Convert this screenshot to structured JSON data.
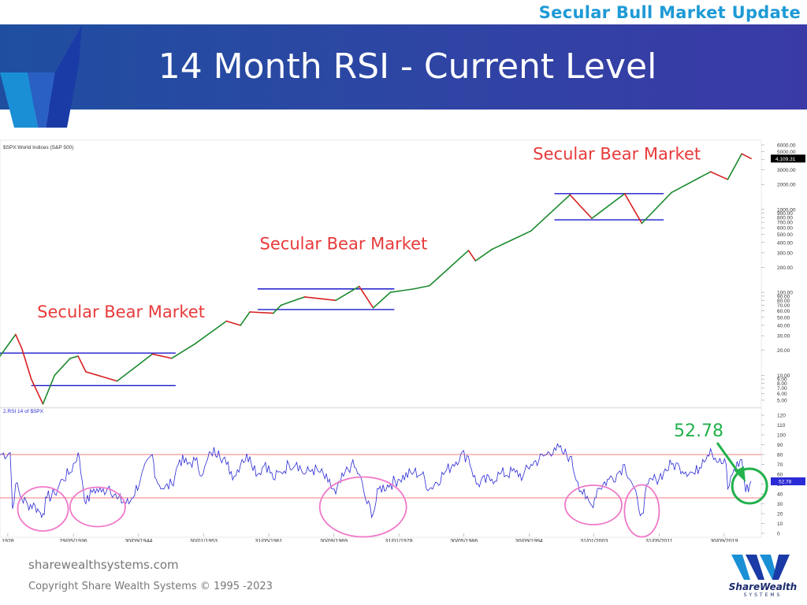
{
  "header": {
    "section_title": "Secular Bull Market Update",
    "slide_title": "14 Month RSI - Current Level"
  },
  "colors": {
    "banner": "#2c47a3",
    "section_title": "#1e9ad6",
    "annotation_red": "#e83a3a",
    "rsi_line": "#2a2ad6",
    "price_up": "#1b8a2e",
    "price_down": "#d82020",
    "support_resistance": "#1a1acc",
    "rsi_band": "#f08080",
    "circle_pink": "#f078c8",
    "circle_green": "#22b14c"
  },
  "chart_data": [
    {
      "type": "line",
      "panel_label": "$SPX:World Indices (S&P 500)",
      "y_scale": "log",
      "yticks": [
        "6000.00",
        "5000.00",
        "4000.00",
        "3000.00",
        "2000.00",
        "1000.00",
        "900.00",
        "800.00",
        "700.00",
        "600.00",
        "500.00",
        "400.00",
        "300.00",
        "200.00",
        "100.00",
        "90.00",
        "80.00",
        "70.00",
        "60.00",
        "50.00",
        "40.00",
        "30.00",
        "20.00",
        "10.00",
        "9.00",
        "8.00",
        "7.00",
        "6.00",
        "5.00"
      ],
      "last_value_label": "4,109.31",
      "series": [
        {
          "x": [
            1927,
            1929,
            1929.8,
            1931,
            1932.5,
            1934,
            1936,
            1937,
            1938,
            1942,
            1945,
            1946.5,
            1949,
            1952,
            1956,
            1957.8,
            1959,
            1962,
            1963,
            1966,
            1970,
            1973,
            1974.8,
            1977,
            1980,
            1982,
            1987,
            1987.9,
            1990,
            1995,
            2000,
            2002.8,
            2007,
            2009.2,
            2013,
            2018,
            2020.2,
            2022,
            2023.2
          ],
          "y": [
            17,
            31,
            21,
            9,
            4.5,
            10,
            16,
            17,
            11,
            8.5,
            14,
            18,
            16,
            24,
            45,
            40,
            58,
            56,
            70,
            88,
            80,
            118,
            65,
            100,
            110,
            120,
            320,
            240,
            330,
            550,
            1500,
            780,
            1550,
            680,
            1600,
            2850,
            2300,
            4700,
            4109
          ]
        }
      ],
      "channels": [
        {
          "x": [
            1927,
            1949.5
          ],
          "y": [
            18.5,
            18.5
          ]
        },
        {
          "x": [
            1931,
            1949.5
          ],
          "y": [
            7.5,
            7.5
          ]
        },
        {
          "x": [
            1960,
            1977.5
          ],
          "y": [
            110,
            110
          ]
        },
        {
          "x": [
            1960,
            1977.5
          ],
          "y": [
            62,
            62
          ]
        },
        {
          "x": [
            1998,
            2012
          ],
          "y": [
            1550,
            1550
          ]
        },
        {
          "x": [
            1998,
            2012
          ],
          "y": [
            750,
            750
          ]
        }
      ],
      "annotations": [
        {
          "text": "Secular Bear Market",
          "x": 1942.5,
          "y": 50
        },
        {
          "text": "Secular Bear Market",
          "x": 1971,
          "y": 330
        },
        {
          "text": "Secular Bear Market",
          "x": 2006,
          "y": 4000
        }
      ]
    },
    {
      "type": "line",
      "panel_label": "2.RSI 14  of $SPX",
      "ylim": [
        0,
        120
      ],
      "yticks": [
        120,
        110,
        100,
        90,
        80,
        70,
        60,
        50,
        40,
        30,
        20,
        10,
        0
      ],
      "reference_lines": [
        80,
        36
      ],
      "current_value": "52.78",
      "callout": "52.78",
      "x_tick_labels": [
        "1928",
        "29/05/1936",
        "30/09/1944",
        "30/01/1953",
        "31/05/1961",
        "30/09/1969",
        "31/01/1978",
        "30/05/1986",
        "30/09/1994",
        "31/01/2003",
        "31/05/2011",
        "30/09/2019"
      ],
      "series": [
        {
          "x": [
            1927,
            1928.3,
            1928.6,
            1929,
            1929.8,
            1930.5,
            1931.5,
            1932,
            1932.5,
            1933,
            1934,
            1935,
            1936,
            1937,
            1937.5,
            1938,
            1939,
            1940,
            1941,
            1942,
            1943.5,
            1945,
            1946.5,
            1947,
            1948,
            1949,
            1950,
            1951,
            1952,
            1953,
            1954,
            1955,
            1956,
            1957,
            1958,
            1959,
            1960,
            1961,
            1962,
            1963,
            1964,
            1965,
            1966,
            1967,
            1968,
            1969,
            1970,
            1971,
            1972,
            1973,
            1974,
            1974.8,
            1975.5,
            1977,
            1978,
            1980,
            1981,
            1982,
            1984,
            1985,
            1986,
            1987,
            1988,
            1990,
            1991,
            1993,
            1994,
            1995,
            1997,
            1998,
            1999,
            2000,
            2001,
            2002,
            2002.8,
            2003.5,
            2005,
            2006,
            2007,
            2008,
            2008.8,
            2009.2,
            2010,
            2011,
            2012,
            2013,
            2014,
            2016,
            2017,
            2018,
            2019,
            2020,
            2020.2,
            2021,
            2022,
            2022.5,
            2023.2
          ],
          "y": [
            80,
            82,
            25,
            50,
            35,
            30,
            28,
            22,
            20,
            36,
            40,
            55,
            62,
            82,
            55,
            30,
            45,
            42,
            48,
            35,
            30,
            55,
            80,
            55,
            45,
            50,
            75,
            70,
            74,
            60,
            82,
            84,
            70,
            58,
            75,
            78,
            60,
            72,
            55,
            62,
            70,
            72,
            60,
            65,
            62,
            52,
            40,
            58,
            70,
            60,
            30,
            20,
            45,
            50,
            55,
            62,
            60,
            45,
            62,
            70,
            80,
            78,
            50,
            55,
            60,
            62,
            58,
            70,
            80,
            87,
            82,
            78,
            52,
            35,
            28,
            45,
            55,
            60,
            70,
            50,
            25,
            20,
            50,
            55,
            62,
            70,
            68,
            60,
            75,
            86,
            72,
            70,
            45,
            65,
            75,
            42,
            53
          ]
        }
      ]
    }
  ],
  "footer": {
    "site": "sharewealthsystems.com",
    "copyright": "Copyright  Share Wealth Systems © 1995 -2023",
    "logo_text": "ShareWealth",
    "logo_subtext": "SYSTEMS"
  }
}
